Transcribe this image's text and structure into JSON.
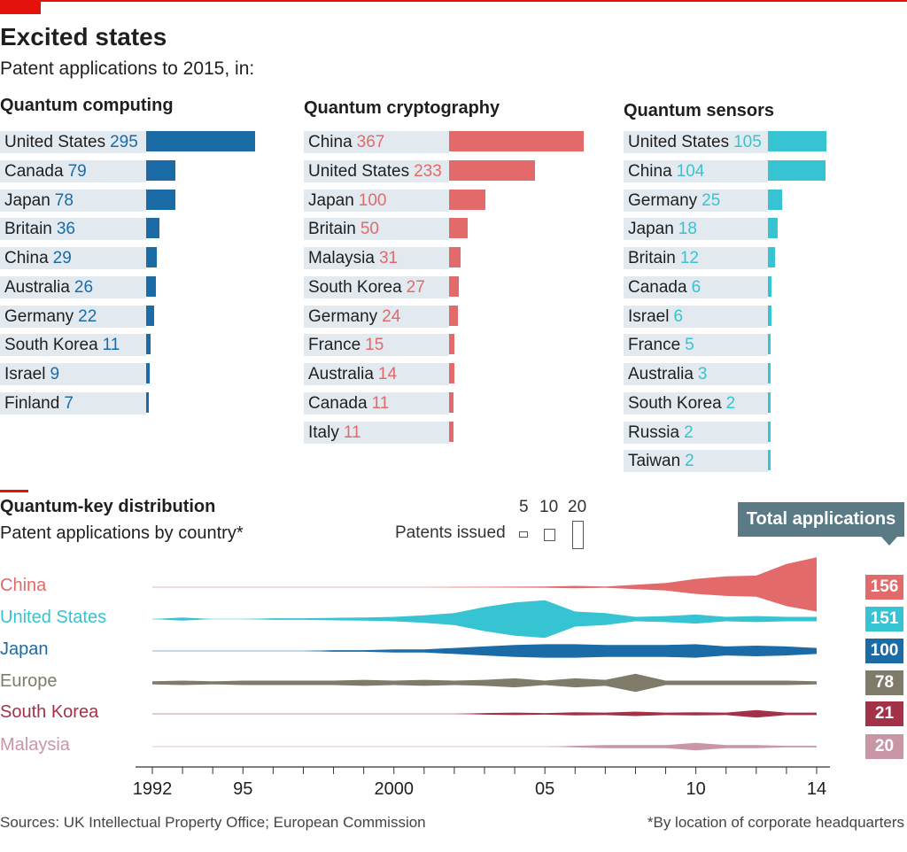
{
  "header": {
    "title": "Excited states",
    "subtitle": "Patent applications to 2015, in:"
  },
  "colors": {
    "accent_red": "#e3120b",
    "computing": "#1b6ba6",
    "cryptography": "#e36a6a",
    "sensors": "#36c3d2",
    "bar_background": "#e2eaf0"
  },
  "panels": [
    {
      "title": "Quantum computing",
      "color": "#1b6ba6",
      "max": 295,
      "items": [
        {
          "country": "United States",
          "value": "295"
        },
        {
          "country": "Canada",
          "value": "79"
        },
        {
          "country": "Japan",
          "value": "78"
        },
        {
          "country": "Britain",
          "value": "36"
        },
        {
          "country": "China",
          "value": "29"
        },
        {
          "country": "Australia",
          "value": "26"
        },
        {
          "country": "Germany",
          "value": "22"
        },
        {
          "country": "South Korea",
          "value": "11"
        },
        {
          "country": "Israel",
          "value": "9"
        },
        {
          "country": "Finland",
          "value": "7"
        }
      ]
    },
    {
      "title": "Quantum cryptography",
      "color": "#e36a6a",
      "max": 367,
      "items": [
        {
          "country": "China",
          "value": "367"
        },
        {
          "country": "United States",
          "value": "233"
        },
        {
          "country": "Japan",
          "value": "100"
        },
        {
          "country": "Britain",
          "value": "50"
        },
        {
          "country": "Malaysia",
          "value": "31"
        },
        {
          "country": "South Korea",
          "value": "27"
        },
        {
          "country": "Germany",
          "value": "24"
        },
        {
          "country": "France",
          "value": "15"
        },
        {
          "country": "Australia",
          "value": "14"
        },
        {
          "country": "Canada",
          "value": "11"
        },
        {
          "country": "Italy",
          "value": "11"
        }
      ]
    },
    {
      "title": "Quantum sensors",
      "color": "#36c3d2",
      "max": 105,
      "items": [
        {
          "country": "United States",
          "value": "105"
        },
        {
          "country": "China",
          "value": "104"
        },
        {
          "country": "Germany",
          "value": "25"
        },
        {
          "country": "Japan",
          "value": "18"
        },
        {
          "country": "Britain",
          "value": "12"
        },
        {
          "country": "Canada",
          "value": "6"
        },
        {
          "country": "Israel",
          "value": "6"
        },
        {
          "country": "France",
          "value": "5"
        },
        {
          "country": "Australia",
          "value": "3"
        },
        {
          "country": "South Korea",
          "value": "2"
        },
        {
          "country": "Russia",
          "value": "2"
        },
        {
          "country": "Taiwan",
          "value": "2"
        }
      ]
    }
  ],
  "qkd": {
    "title": "Quantum-key distribution",
    "subtitle": "Patent applications by country*",
    "legend_label": "Patents issued",
    "legend_sizes": [
      "5",
      "10",
      "20"
    ],
    "total_label": "Total applications",
    "x_ticks": [
      "1992",
      "95",
      "2000",
      "05",
      "10",
      "14"
    ]
  },
  "chart_data": {
    "type": "area",
    "title": "Quantum-key distribution",
    "subtitle": "Patent applications by country*",
    "xlabel": "",
    "ylabel": "Patents issued",
    "x": [
      1992,
      1993,
      1994,
      1995,
      1996,
      1997,
      1998,
      1999,
      2000,
      2001,
      2002,
      2003,
      2004,
      2005,
      2006,
      2007,
      2008,
      2009,
      2010,
      2011,
      2012,
      2013,
      2014
    ],
    "xlim": [
      1992,
      2014
    ],
    "x_tick_labels": [
      "1992",
      "95",
      "2000",
      "05",
      "10",
      "14"
    ],
    "series": [
      {
        "name": "China",
        "total": "156",
        "color": "#e36a6a",
        "values": [
          0,
          0,
          0,
          0,
          0,
          0,
          0,
          0,
          0,
          0,
          0.1,
          0.2,
          0.3,
          0.4,
          0.8,
          0.4,
          1.5,
          2.5,
          5,
          6.5,
          7,
          14,
          18
        ]
      },
      {
        "name": "United States",
        "total": "151",
        "color": "#36c3d2",
        "values": [
          0,
          1,
          0,
          0,
          0.5,
          0.5,
          0.8,
          1,
          1.5,
          2.5,
          4,
          8,
          11,
          12.5,
          5,
          4,
          1.5,
          2,
          3,
          1.5,
          2,
          1.5,
          1.5
        ]
      },
      {
        "name": "Japan",
        "total": "100",
        "color": "#1b6ba6",
        "values": [
          0,
          0,
          0,
          0,
          0,
          0,
          0.5,
          0.5,
          1,
          1,
          2,
          3,
          4,
          4.5,
          4.5,
          4,
          4,
          4,
          4.5,
          3,
          3.5,
          3,
          2
        ]
      },
      {
        "name": "Europe",
        "total": "78",
        "color": "#7e7b69",
        "values": [
          1,
          1.5,
          1,
          1.5,
          1.5,
          1.5,
          1.5,
          2,
          1.5,
          2,
          1.5,
          2,
          3,
          1.5,
          3,
          2,
          6,
          1.5,
          1.5,
          1.5,
          1.5,
          1.5,
          1
        ]
      },
      {
        "name": "South Korea",
        "total": "21",
        "color": "#a33248",
        "values": [
          0,
          0,
          0,
          0,
          0,
          0,
          0,
          0,
          0,
          0,
          0,
          0.5,
          0.8,
          0.5,
          1,
          0.8,
          1.5,
          0.8,
          1,
          0.8,
          2.5,
          0.8,
          0.8
        ]
      },
      {
        "name": "Malaysia",
        "total": "20",
        "color": "#c996a6",
        "values": [
          0,
          0,
          0,
          0,
          0,
          0,
          0,
          0,
          0,
          0,
          0,
          0,
          0,
          0,
          0.5,
          1,
          1,
          1,
          2.5,
          1,
          1,
          0.5,
          0.5
        ]
      }
    ]
  },
  "footer": {
    "sources": "Sources: UK Intellectual Property Office; European Commission",
    "note": "*By location of corporate headquarters"
  }
}
